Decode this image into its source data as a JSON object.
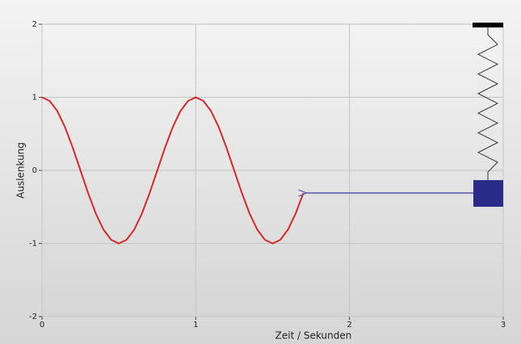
{
  "chart_data": {
    "type": "line",
    "x_label": "Zeit / Sekunden",
    "y_label": "Auslenkung",
    "x": [
      0,
      0.05,
      0.1,
      0.15,
      0.2,
      0.25,
      0.3,
      0.35,
      0.4,
      0.45,
      0.5,
      0.55,
      0.6,
      0.65,
      0.7,
      0.75,
      0.8,
      0.85,
      0.9,
      0.95,
      1,
      1.05,
      1.1,
      1.15,
      1.2,
      1.25,
      1.3,
      1.35,
      1.4,
      1.45,
      1.5,
      1.55,
      1.6,
      1.65,
      1.7
    ],
    "values": [
      1,
      0.95,
      0.81,
      0.59,
      0.31,
      0,
      -0.31,
      -0.59,
      -0.81,
      -0.95,
      -1,
      -0.95,
      -0.81,
      -0.59,
      -0.31,
      0,
      0.31,
      0.59,
      0.81,
      0.95,
      1,
      0.95,
      0.81,
      0.59,
      0.31,
      0,
      -0.31,
      -0.59,
      -0.81,
      -0.95,
      -1,
      -0.95,
      -0.81,
      -0.59,
      -0.31
    ],
    "color": "#d42a2a",
    "xlim": [
      0,
      3
    ],
    "ylim": [
      -2,
      2
    ],
    "xticks": [
      0,
      1,
      2,
      3
    ],
    "yticks": [
      -2,
      -1,
      0,
      1,
      2
    ],
    "grid": true
  }
}
